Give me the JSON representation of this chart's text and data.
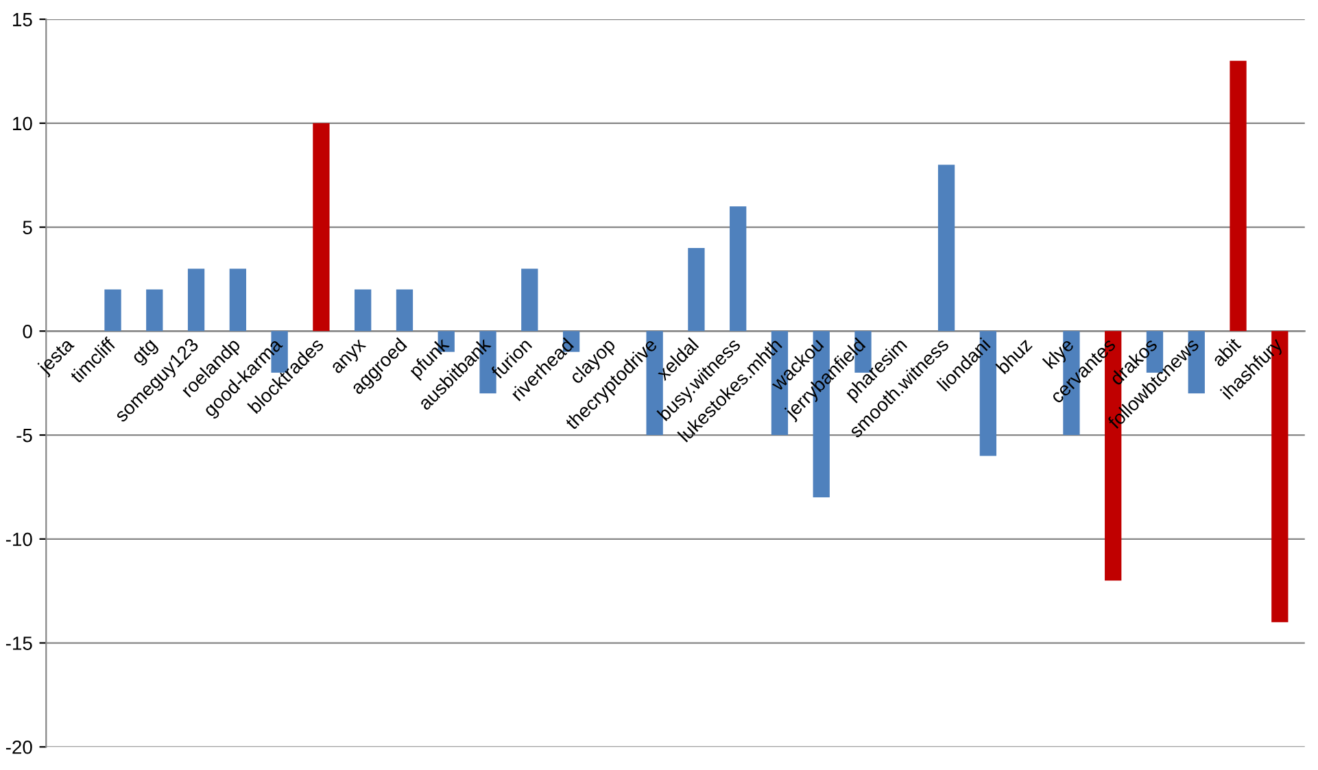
{
  "chart_data": {
    "type": "bar",
    "categories": [
      "jesta",
      "timcliff",
      "gtg",
      "someguy123",
      "roelandp",
      "good-karma",
      "blocktrades",
      "anyx",
      "aggroed",
      "pfunk",
      "ausbitbank",
      "furion",
      "riverhead",
      "clayop",
      "thecryptodrive",
      "xeldal",
      "busy.witness",
      "lukestokes.mhth",
      "wackou",
      "jerrybanfield",
      "pharesim",
      "smooth.witness",
      "liondani",
      "bhuz",
      "klye",
      "cervantes",
      "drakos",
      "followbtcnews",
      "abit",
      "ihashfury"
    ],
    "values": [
      0,
      2,
      2,
      3,
      3,
      -2,
      10,
      2,
      2,
      -1,
      -3,
      3,
      -1,
      0,
      -5,
      4,
      6,
      -5,
      -8,
      -2,
      0,
      8,
      -6,
      0,
      -5,
      -12,
      -2,
      -3,
      13,
      -14
    ],
    "colors": [
      "#4f81bd",
      "#4f81bd",
      "#4f81bd",
      "#4f81bd",
      "#4f81bd",
      "#4f81bd",
      "#c00000",
      "#4f81bd",
      "#4f81bd",
      "#4f81bd",
      "#4f81bd",
      "#4f81bd",
      "#4f81bd",
      "#4f81bd",
      "#4f81bd",
      "#4f81bd",
      "#4f81bd",
      "#4f81bd",
      "#4f81bd",
      "#4f81bd",
      "#4f81bd",
      "#4f81bd",
      "#4f81bd",
      "#4f81bd",
      "#4f81bd",
      "#c00000",
      "#4f81bd",
      "#4f81bd",
      "#c00000",
      "#c00000"
    ],
    "ylim": [
      -20,
      15
    ],
    "yticks": [
      -20,
      -15,
      -10,
      -5,
      0,
      5,
      10,
      15
    ],
    "grid": "y",
    "legend": false
  }
}
